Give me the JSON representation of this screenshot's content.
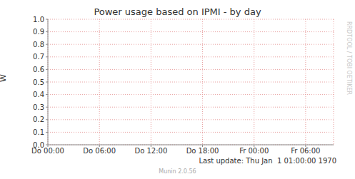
{
  "chart_data": {
    "type": "line",
    "title": "Power usage based on IPMI - by day",
    "ylabel": "W",
    "xlim": [
      0,
      33.25
    ],
    "xticks": [
      {
        "value": 0,
        "label": "Do 00:00"
      },
      {
        "value": 6,
        "label": "Do 06:00"
      },
      {
        "value": 12,
        "label": "Do 12:00"
      },
      {
        "value": 18,
        "label": "Do 18:00"
      },
      {
        "value": 24,
        "label": "Fr 00:00"
      },
      {
        "value": 30,
        "label": "Fr 06:00"
      }
    ],
    "ylim": [
      0,
      1
    ],
    "yticks": [
      {
        "value": 0,
        "label": "0.0"
      },
      0.1,
      0.2,
      0.3,
      0.4,
      0.5,
      0.6,
      0.7,
      0.8,
      0.9,
      {
        "value": 1,
        "label": "1.0"
      }
    ],
    "grid": true,
    "footer": "Last update: Thu Jan  1 01:00:00 1970",
    "watermark": "RRDTOOL / TOBI OETIKER",
    "credit": "Munin 2.0.56"
  }
}
